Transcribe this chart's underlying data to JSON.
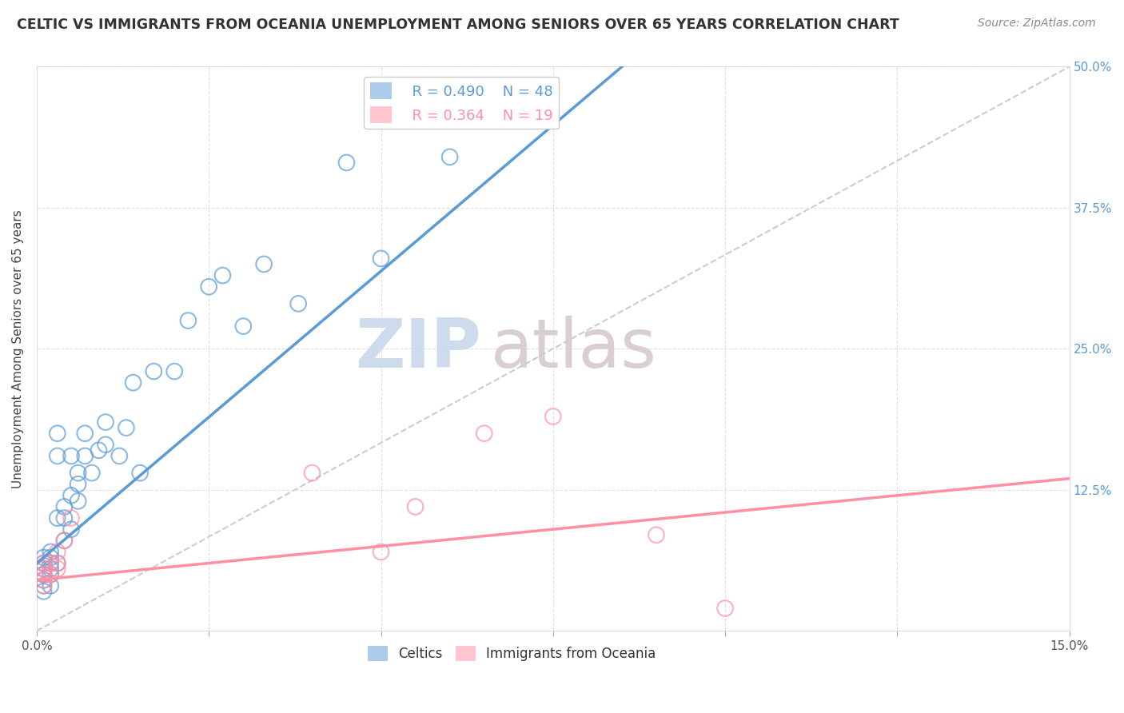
{
  "title": "CELTIC VS IMMIGRANTS FROM OCEANIA UNEMPLOYMENT AMONG SENIORS OVER 65 YEARS CORRELATION CHART",
  "source": "Source: ZipAtlas.com",
  "ylabel": "Unemployment Among Seniors over 65 years",
  "xlim": [
    0.0,
    0.15
  ],
  "ylim": [
    0.0,
    0.5
  ],
  "xticks": [
    0.0,
    0.025,
    0.05,
    0.075,
    0.1,
    0.125,
    0.15
  ],
  "xticklabels": [
    "0.0%",
    "",
    "",
    "",
    "",
    "",
    "15.0%"
  ],
  "yticks": [
    0.0,
    0.125,
    0.25,
    0.375,
    0.5
  ],
  "yticklabels_right": [
    "",
    "12.5%",
    "25.0%",
    "37.5%",
    "50.0%"
  ],
  "legend1_r": "0.490",
  "legend1_n": "48",
  "legend2_r": "0.364",
  "legend2_n": "19",
  "color_celtics": "#5B9BD5",
  "color_oceania": "#FF8FA3",
  "color_ref_line": "#CCCCCC",
  "watermark_zip": "ZIP",
  "watermark_atlas": "atlas",
  "celtics_x": [
    0.001,
    0.001,
    0.001,
    0.001,
    0.001,
    0.001,
    0.001,
    0.001,
    0.002,
    0.002,
    0.002,
    0.002,
    0.002,
    0.002,
    0.003,
    0.003,
    0.003,
    0.003,
    0.004,
    0.004,
    0.004,
    0.005,
    0.005,
    0.005,
    0.006,
    0.006,
    0.006,
    0.007,
    0.007,
    0.008,
    0.009,
    0.01,
    0.01,
    0.012,
    0.013,
    0.014,
    0.015,
    0.017,
    0.02,
    0.022,
    0.025,
    0.027,
    0.03,
    0.033,
    0.038,
    0.045,
    0.05,
    0.06
  ],
  "celtics_y": [
    0.035,
    0.04,
    0.045,
    0.05,
    0.05,
    0.055,
    0.06,
    0.065,
    0.04,
    0.05,
    0.055,
    0.06,
    0.065,
    0.07,
    0.06,
    0.1,
    0.155,
    0.175,
    0.08,
    0.1,
    0.11,
    0.09,
    0.12,
    0.155,
    0.115,
    0.13,
    0.14,
    0.155,
    0.175,
    0.14,
    0.16,
    0.165,
    0.185,
    0.155,
    0.18,
    0.22,
    0.14,
    0.23,
    0.23,
    0.275,
    0.305,
    0.315,
    0.27,
    0.325,
    0.29,
    0.415,
    0.33,
    0.42
  ],
  "oceania_x": [
    0.001,
    0.001,
    0.001,
    0.001,
    0.001,
    0.002,
    0.002,
    0.003,
    0.003,
    0.003,
    0.004,
    0.005,
    0.04,
    0.05,
    0.055,
    0.065,
    0.075,
    0.09,
    0.1
  ],
  "oceania_y": [
    0.04,
    0.045,
    0.05,
    0.055,
    0.06,
    0.05,
    0.06,
    0.055,
    0.06,
    0.07,
    0.08,
    0.1,
    0.14,
    0.07,
    0.11,
    0.175,
    0.19,
    0.085,
    0.02
  ],
  "celtics_line_x": [
    0.0,
    0.085
  ],
  "celtics_line_y": [
    0.06,
    0.5
  ],
  "oceania_line_x": [
    0.0,
    0.15
  ],
  "oceania_line_y": [
    0.045,
    0.135
  ]
}
